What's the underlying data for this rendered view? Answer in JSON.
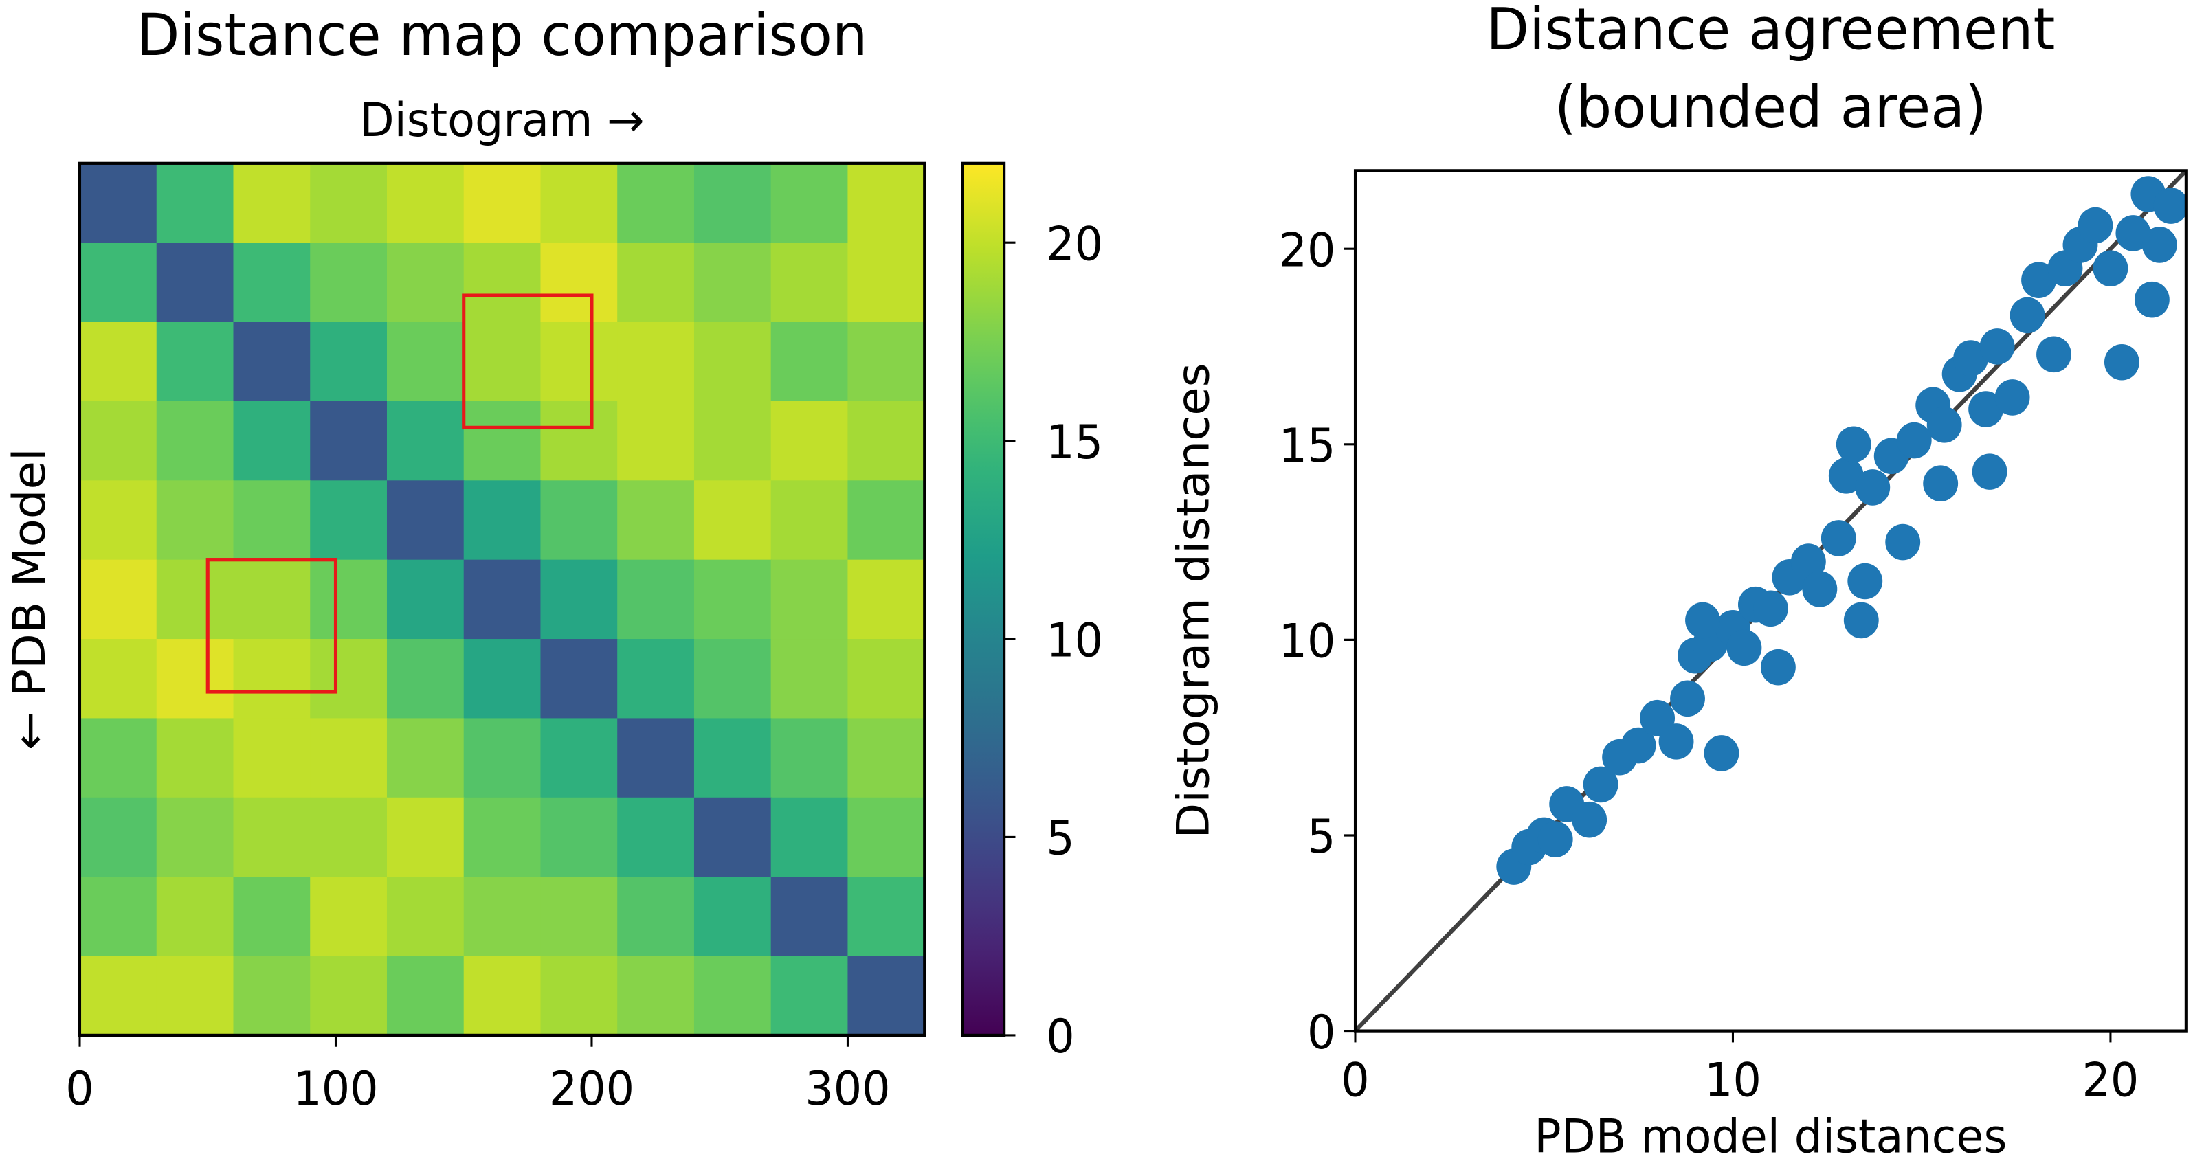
{
  "chart_data": [
    {
      "type": "heatmap",
      "title": "Distance map comparison",
      "x_label": "Distogram →",
      "y_label": "← PDB Model",
      "xlim": [
        0,
        330
      ],
      "xticks": [
        0,
        100,
        200,
        300
      ],
      "ylim": [
        0,
        330
      ],
      "bins": [
        0,
        30,
        60,
        90,
        120,
        150,
        180,
        210,
        240,
        270,
        300,
        330
      ],
      "z": [
        [
          6,
          15,
          20,
          19,
          20,
          21,
          20,
          17,
          16,
          17,
          20
        ],
        [
          15,
          6,
          15,
          17,
          18,
          19,
          21,
          19,
          18,
          19,
          20
        ],
        [
          20,
          15,
          6,
          14,
          17,
          19,
          20,
          20,
          19,
          17,
          18
        ],
        [
          19,
          17,
          14,
          6,
          14,
          17,
          19,
          20,
          19,
          20,
          19
        ],
        [
          20,
          18,
          17,
          14,
          6,
          13,
          16,
          18,
          20,
          19,
          17
        ],
        [
          21,
          19,
          19,
          17,
          13,
          6,
          13,
          16,
          17,
          18,
          20
        ],
        [
          20,
          21,
          20,
          19,
          16,
          13,
          6,
          14,
          16,
          18,
          19
        ],
        [
          17,
          19,
          20,
          20,
          18,
          16,
          14,
          6,
          14,
          16,
          18
        ],
        [
          16,
          18,
          19,
          19,
          20,
          17,
          16,
          14,
          6,
          14,
          17
        ],
        [
          17,
          19,
          17,
          20,
          19,
          18,
          18,
          16,
          14,
          6,
          15
        ],
        [
          20,
          20,
          18,
          19,
          17,
          20,
          19,
          18,
          17,
          15,
          6
        ]
      ],
      "colormap": "viridis",
      "clim": [
        0,
        22
      ],
      "cticks": [
        0,
        5,
        10,
        15,
        20
      ],
      "highlights": [
        {
          "x": [
            150,
            200
          ],
          "y": [
            50,
            100
          ]
        },
        {
          "x": [
            50,
            100
          ],
          "y": [
            150,
            200
          ]
        }
      ],
      "highlight_color": "#e8191a"
    },
    {
      "type": "scatter",
      "title": [
        "Distance agreement",
        "(bounded area)"
      ],
      "x_label": "PDB model distances",
      "y_label": "Distogram distances",
      "xlim": [
        0,
        22
      ],
      "xticks": [
        0,
        10,
        20
      ],
      "ylim": [
        0,
        22
      ],
      "yticks": [
        0,
        5,
        10,
        15,
        20
      ],
      "color": "#1f77b4",
      "diagonal": true,
      "diagonal_color": "#404040",
      "x": [
        4.2,
        4.6,
        5,
        5.3,
        5.6,
        6.2,
        6.5,
        7,
        7.5,
        8,
        8.5,
        8.8,
        9,
        9.4,
        9.7,
        10,
        10.3,
        10.6,
        11,
        11.5,
        12,
        12.3,
        12.8,
        13,
        13.2,
        13.4,
        13.7,
        14.2,
        14.5,
        14.8,
        15.3,
        15.6,
        16,
        16.3,
        16.7,
        17,
        17.4,
        17.8,
        18.1,
        18.5,
        18.8,
        19.2,
        19.6,
        20,
        20.3,
        20.6,
        21,
        21.3,
        21.6,
        21.1,
        16.8,
        15.5,
        9.2,
        11.2,
        13.5
      ],
      "y": [
        4.2,
        4.7,
        5,
        4.9,
        5.8,
        5.4,
        6.3,
        7,
        7.3,
        8,
        7.4,
        8.5,
        9.6,
        9.9,
        7.1,
        10.3,
        9.8,
        10.9,
        10.8,
        11.6,
        12,
        11.3,
        12.6,
        14.2,
        15,
        10.5,
        13.9,
        14.7,
        12.5,
        15.1,
        16,
        15.5,
        16.8,
        17.2,
        15.9,
        17.5,
        16.2,
        18.3,
        19.2,
        17.3,
        19.5,
        20.1,
        20.6,
        19.5,
        17.1,
        20.4,
        21.4,
        20.1,
        21.1,
        18.7,
        14.3,
        14,
        10.5,
        9.3,
        11.5
      ]
    }
  ]
}
